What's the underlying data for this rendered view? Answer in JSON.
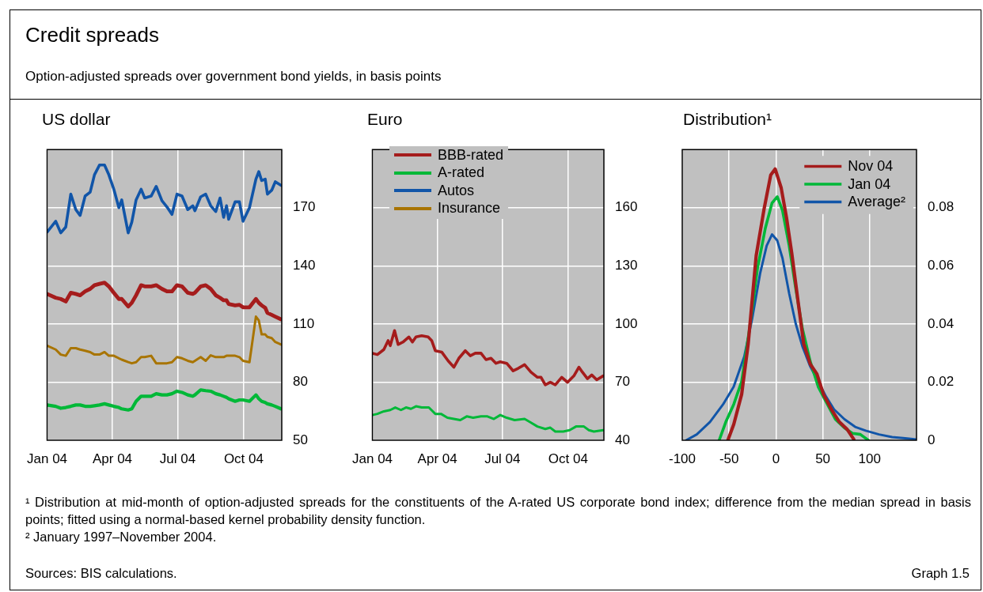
{
  "chart_data": [
    {
      "type": "other",
      "title": "Credit spreads",
      "subtitle": "Option-adjusted spreads over government bond yields, in basis points"
    },
    {
      "type": "line",
      "title": "US dollar",
      "xlim": [
        "2004-01-01",
        "2004-11-23"
      ],
      "xticks": [
        {
          "value": "2004-01-01",
          "label": "Jan 04"
        },
        {
          "value": "2004-04-01",
          "label": "Apr 04"
        },
        {
          "value": "2004-07-01",
          "label": "Jul 04"
        },
        {
          "value": "2004-10-01",
          "label": "Oct 04"
        }
      ],
      "ylim": [
        50,
        200
      ],
      "yticks": [
        50,
        80,
        110,
        140,
        170
      ],
      "grid": true,
      "legend": "right",
      "x": [
        "2004-01-01",
        "2004-01-13",
        "2004-01-20",
        "2004-01-27",
        "2004-02-03",
        "2004-02-10",
        "2004-02-16",
        "2004-02-23",
        "2004-03-01",
        "2004-03-07",
        "2004-03-14",
        "2004-03-21",
        "2004-03-27",
        "2004-04-03",
        "2004-04-10",
        "2004-04-14",
        "2004-04-23",
        "2004-04-28",
        "2004-05-04",
        "2004-05-11",
        "2004-05-16",
        "2004-05-25",
        "2004-06-01",
        "2004-06-09",
        "2004-06-16",
        "2004-06-23",
        "2004-06-30",
        "2004-07-07",
        "2004-07-15",
        "2004-07-22",
        "2004-07-25",
        "2004-08-02",
        "2004-08-09",
        "2004-08-16",
        "2004-08-23",
        "2004-08-29",
        "2004-09-03",
        "2004-09-07",
        "2004-09-10",
        "2004-09-19",
        "2004-09-25",
        "2004-09-30",
        "2004-10-09",
        "2004-10-18",
        "2004-10-22",
        "2004-10-26",
        "2004-10-31",
        "2004-11-03",
        "2004-11-09",
        "2004-11-14",
        "2004-11-22"
      ],
      "series": [
        {
          "name": "BBB-rated",
          "color": "#a51c1c",
          "values": [
            125.5,
            123.5,
            122.9,
            121.6,
            126.1,
            125.5,
            124.8,
            126.8,
            128.1,
            130.0,
            130.7,
            131.3,
            129.4,
            126.1,
            122.9,
            122.9,
            119.0,
            120.9,
            124.8,
            130.0,
            129.4,
            129.4,
            130.0,
            128.1,
            126.8,
            126.8,
            130.0,
            129.4,
            126.1,
            125.5,
            126.1,
            129.4,
            130.0,
            128.1,
            124.8,
            123.5,
            122.2,
            122.2,
            120.3,
            119.6,
            119.9,
            118.6,
            118.6,
            122.9,
            120.9,
            119.6,
            118.3,
            115.7,
            114.7,
            113.8,
            112.4
          ]
        },
        {
          "name": "A-rated",
          "color": "#00b838",
          "values": [
            68.2,
            67.5,
            66.5,
            66.9,
            67.5,
            68.2,
            68.2,
            67.5,
            67.5,
            67.8,
            68.2,
            68.8,
            68.2,
            67.5,
            66.9,
            66.2,
            65.6,
            66.2,
            70.1,
            72.7,
            72.7,
            72.7,
            74.0,
            73.4,
            73.4,
            74.0,
            75.3,
            74.7,
            73.4,
            72.7,
            73.4,
            76.0,
            75.6,
            75.3,
            74.0,
            73.4,
            72.7,
            72.1,
            71.4,
            70.1,
            70.8,
            70.8,
            70.1,
            73.4,
            71.4,
            70.1,
            69.5,
            68.8,
            68.2,
            67.5,
            66.2
          ]
        },
        {
          "name": "Autos",
          "color": "#1155a8",
          "values": [
            157.4,
            163,
            157,
            160,
            177,
            169,
            166,
            176,
            178,
            187,
            192,
            192,
            187,
            179.5,
            170,
            174,
            157,
            162.5,
            174,
            179.5,
            175,
            176,
            181,
            173.6,
            170.4,
            166.5,
            177,
            176,
            169,
            171,
            168.4,
            175.6,
            177,
            171,
            168,
            175,
            165,
            171,
            164,
            173,
            173,
            163,
            170,
            184.7,
            188.6,
            184,
            184.7,
            177,
            179,
            183.4,
            181.5
          ]
        },
        {
          "name": "Insurance",
          "color": "#a87400",
          "values": [
            98.8,
            96.8,
            94.2,
            93.6,
            97.5,
            97.5,
            96.8,
            96.2,
            95.5,
            94.2,
            94.2,
            95.5,
            93.6,
            93.6,
            92.3,
            91.6,
            90.3,
            89.7,
            90.3,
            92.9,
            92.9,
            93.6,
            89.7,
            89.7,
            89.7,
            90.3,
            92.9,
            92.3,
            91.0,
            90.3,
            91.0,
            92.9,
            91.0,
            93.8,
            92.9,
            92.9,
            92.9,
            93.6,
            93.6,
            93.6,
            92.9,
            91.0,
            90.3,
            113.8,
            111.8,
            104.6,
            104.6,
            103.3,
            102.7,
            100.7,
            99.4
          ]
        }
      ]
    },
    {
      "type": "line",
      "title": "Euro",
      "xlim": [
        "2004-01-01",
        "2004-11-20"
      ],
      "xticks": [
        {
          "value": "2004-01-01",
          "label": "Jan 04"
        },
        {
          "value": "2004-04-01",
          "label": "Apr 04"
        },
        {
          "value": "2004-07-01",
          "label": "Jul 04"
        },
        {
          "value": "2004-10-01",
          "label": "Oct 04"
        }
      ],
      "ylim": [
        40,
        190
      ],
      "yticks": [
        40,
        70,
        100,
        130,
        160
      ],
      "grid": true,
      "series": [
        {
          "color": "#a51c1c",
          "x": [
            "2004-01-01",
            "2004-01-08",
            "2004-01-17",
            "2004-01-23",
            "2004-01-26",
            "2004-02-01",
            "2004-02-06",
            "2004-02-13",
            "2004-02-21",
            "2004-02-26",
            "2004-03-02",
            "2004-03-10",
            "2004-03-19",
            "2004-03-24",
            "2004-03-29",
            "2004-04-07",
            "2004-04-16",
            "2004-04-24",
            "2004-05-01",
            "2004-05-10",
            "2004-05-17",
            "2004-05-24",
            "2004-06-01",
            "2004-06-08",
            "2004-06-15",
            "2004-06-22",
            "2004-06-28",
            "2004-07-07",
            "2004-07-16",
            "2004-07-23",
            "2004-08-01",
            "2004-08-10",
            "2004-08-19",
            "2004-08-24",
            "2004-08-30",
            "2004-09-06",
            "2004-09-13",
            "2004-09-22",
            "2004-09-30",
            "2004-10-09",
            "2004-10-16",
            "2004-10-21",
            "2004-10-28",
            "2004-11-03",
            "2004-11-10",
            "2004-11-19"
          ],
          "values": [
            84.9,
            84.2,
            86.8,
            91.4,
            88.8,
            96.6,
            89.4,
            90.7,
            93.3,
            90.7,
            93.3,
            93.9,
            93.3,
            91.4,
            86.2,
            85.5,
            81.0,
            77.7,
            82.3,
            86.2,
            83.6,
            84.9,
            84.9,
            81.6,
            82.3,
            79.7,
            80.5,
            79.7,
            75.8,
            77.1,
            79.0,
            75.1,
            72.5,
            72.5,
            68.6,
            69.9,
            68.6,
            72.5,
            69.9,
            73.2,
            77.7,
            75.1,
            71.8,
            73.7,
            71.2,
            73.2
          ]
        },
        {
          "color": "#00b838",
          "x": [
            "2004-01-01",
            "2004-01-08",
            "2004-01-17",
            "2004-01-26",
            "2004-02-02",
            "2004-02-10",
            "2004-02-17",
            "2004-02-24",
            "2004-03-02",
            "2004-03-10",
            "2004-03-20",
            "2004-03-29",
            "2004-04-06",
            "2004-04-15",
            "2004-04-24",
            "2004-05-03",
            "2004-05-12",
            "2004-05-21",
            "2004-06-01",
            "2004-06-10",
            "2004-06-19",
            "2004-06-28",
            "2004-07-07",
            "2004-07-18",
            "2004-08-01",
            "2004-08-10",
            "2004-08-19",
            "2004-08-30",
            "2004-09-06",
            "2004-09-13",
            "2004-09-24",
            "2004-10-03",
            "2004-10-12",
            "2004-10-23",
            "2004-10-30",
            "2004-11-06",
            "2004-11-19"
          ],
          "values": [
            53.0,
            53.6,
            54.9,
            55.6,
            56.9,
            55.6,
            56.9,
            56.2,
            57.5,
            56.9,
            56.9,
            53.6,
            53.6,
            51.6,
            51.0,
            50.4,
            52.3,
            51.6,
            52.3,
            52.3,
            51.0,
            53.0,
            51.6,
            50.4,
            51.0,
            49.1,
            47.1,
            45.8,
            46.5,
            44.5,
            44.5,
            45.2,
            47.1,
            47.1,
            45.2,
            44.5,
            45.2
          ]
        }
      ]
    },
    {
      "type": "line",
      "title": "Distribution¹",
      "xlim": [
        -100,
        150
      ],
      "xticks": [
        -100,
        -50,
        0,
        50,
        100
      ],
      "ylim": [
        0,
        0.1
      ],
      "yticks": [
        0,
        0.02,
        0.04,
        0.06,
        0.08
      ],
      "grid": true,
      "legend": "top right",
      "series": [
        {
          "name": "Nov 04",
          "color": "#a51c1c",
          "x": [
            -51.3,
            -45,
            -36.6,
            -29.6,
            -21.1,
            -12.7,
            -5.6,
            -0.8,
            5.6,
            11.3,
            16.9,
            23.9,
            29.6,
            36.6,
            43.7,
            50.7,
            59.2,
            67.6,
            76.1,
            83.1
          ],
          "values": [
            0,
            0.0055,
            0.0158,
            0.0332,
            0.0635,
            0.0795,
            0.0912,
            0.0933,
            0.0868,
            0.0765,
            0.0643,
            0.047,
            0.0332,
            0.0262,
            0.0228,
            0.0158,
            0.0106,
            0.0063,
            0.0037,
            0.0003
          ]
        },
        {
          "name": "Jan 04",
          "color": "#00b838",
          "x": [
            -60.6,
            -53.5,
            -45,
            -36.6,
            -28.2,
            -19.7,
            -11.3,
            -4.2,
            1.4,
            7,
            14.1,
            21.1,
            28.2,
            36.6,
            45.1,
            53.5,
            63.4,
            73.2,
            81.7,
            90.1,
            98.6
          ],
          "values": [
            0,
            0.0063,
            0.0124,
            0.0202,
            0.0384,
            0.0591,
            0.073,
            0.0816,
            0.0838,
            0.079,
            0.0669,
            0.0522,
            0.0384,
            0.0271,
            0.0184,
            0.0132,
            0.0072,
            0.0042,
            0.0024,
            0.002,
            0
          ]
        },
        {
          "name": "Average²",
          "color": "#1155a8",
          "x": [
            -95.8,
            -84.5,
            -70.4,
            -56.3,
            -45.1,
            -33.8,
            -25.4,
            -16.9,
            -9.9,
            -4.2,
            1.4,
            7,
            14.1,
            21.1,
            28.2,
            36.6,
            45.1,
            53.5,
            62,
            73.2,
            84.5,
            95.8,
            109.9,
            124,
            138,
            150
          ],
          "values": [
            0,
            0.002,
            0.0063,
            0.0124,
            0.0184,
            0.0288,
            0.0418,
            0.0574,
            0.0669,
            0.0708,
            0.0687,
            0.0626,
            0.0505,
            0.0401,
            0.0323,
            0.0254,
            0.0202,
            0.015,
            0.0106,
            0.0072,
            0.0046,
            0.0033,
            0.002,
            0.0011,
            0.0007,
            0.0003
          ]
        }
      ]
    },
    {
      "type": "other",
      "annotations": [
        "¹ Distribution at mid-month of option-adjusted spreads for the constituents of the A-rated US corporate bond index; difference from the median spread in basis points; fitted using a normal-based kernel probability density function.",
        "² January 1997–November 2004.",
        "Sources: BIS calculations.",
        "Graph 1.5"
      ]
    }
  ]
}
